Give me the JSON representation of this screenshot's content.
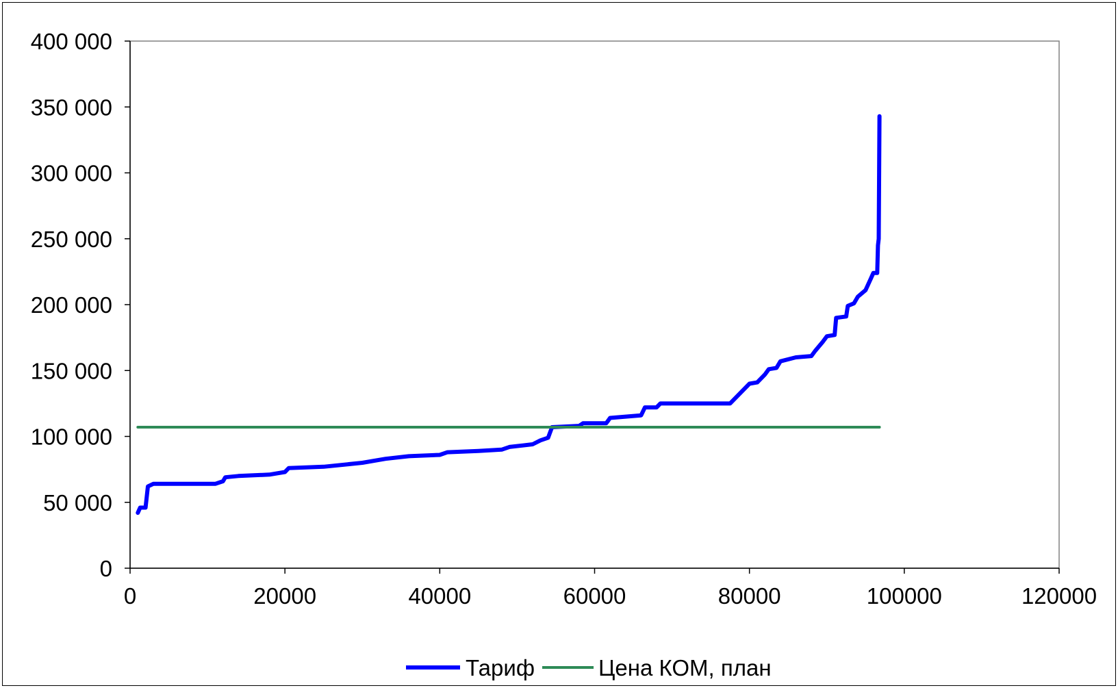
{
  "chart_data": {
    "type": "line",
    "title": "",
    "xlabel": "",
    "ylabel": "",
    "xlim": [
      0,
      120000
    ],
    "ylim": [
      0,
      400000
    ],
    "x_ticks": [
      0,
      20000,
      40000,
      60000,
      80000,
      100000,
      120000
    ],
    "x_tick_labels": [
      "0",
      "20000",
      "40000",
      "60000",
      "80000",
      "100000",
      "120000"
    ],
    "y_ticks": [
      0,
      50000,
      100000,
      150000,
      200000,
      250000,
      300000,
      350000,
      400000
    ],
    "y_tick_labels": [
      "0",
      "50 000",
      "100 000",
      "150 000",
      "200 000",
      "250 000",
      "300 000",
      "350 000",
      "400 000"
    ],
    "grid": false,
    "legend_position": "bottom",
    "series": [
      {
        "name": "Тариф",
        "color": "#0000FF",
        "points": [
          [
            1000,
            42000
          ],
          [
            1300,
            46000
          ],
          [
            2000,
            46000
          ],
          [
            2300,
            62000
          ],
          [
            3000,
            64000
          ],
          [
            11000,
            64000
          ],
          [
            12000,
            66000
          ],
          [
            12300,
            69000
          ],
          [
            14000,
            70000
          ],
          [
            18000,
            71000
          ],
          [
            20000,
            73000
          ],
          [
            20500,
            76000
          ],
          [
            25000,
            77000
          ],
          [
            30000,
            80000
          ],
          [
            33000,
            83000
          ],
          [
            36000,
            85000
          ],
          [
            40000,
            86000
          ],
          [
            41000,
            88000
          ],
          [
            45000,
            89000
          ],
          [
            48000,
            90000
          ],
          [
            49000,
            92000
          ],
          [
            52000,
            94000
          ],
          [
            53000,
            97000
          ],
          [
            54000,
            99000
          ],
          [
            54500,
            107000
          ],
          [
            58000,
            108000
          ],
          [
            58500,
            110000
          ],
          [
            61500,
            110000
          ],
          [
            62000,
            114000
          ],
          [
            66000,
            116000
          ],
          [
            66500,
            122000
          ],
          [
            68000,
            122000
          ],
          [
            68500,
            125000
          ],
          [
            77500,
            125000
          ],
          [
            79000,
            134000
          ],
          [
            80000,
            140000
          ],
          [
            81000,
            141000
          ],
          [
            82000,
            147000
          ],
          [
            82500,
            151000
          ],
          [
            83500,
            152000
          ],
          [
            84000,
            157000
          ],
          [
            86000,
            160000
          ],
          [
            88000,
            161000
          ],
          [
            88500,
            165000
          ],
          [
            89500,
            172000
          ],
          [
            90000,
            176000
          ],
          [
            91000,
            177000
          ],
          [
            91200,
            190000
          ],
          [
            92500,
            191000
          ],
          [
            92700,
            199000
          ],
          [
            93500,
            201000
          ],
          [
            94000,
            206000
          ],
          [
            95000,
            211000
          ],
          [
            95700,
            220000
          ],
          [
            96000,
            224000
          ],
          [
            96500,
            224000
          ],
          [
            96600,
            245000
          ],
          [
            96700,
            250000
          ],
          [
            96800,
            343000
          ]
        ]
      },
      {
        "name": "Цена КОМ, план",
        "color": "#2E8B57",
        "points": [
          [
            1000,
            107000
          ],
          [
            96800,
            107000
          ]
        ]
      }
    ]
  }
}
